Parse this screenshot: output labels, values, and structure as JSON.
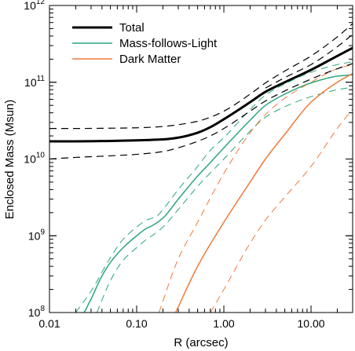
{
  "chart_data": {
    "type": "line",
    "title": "",
    "xlabel": "R (arcsec)",
    "ylabel": "Enclosed Mass (Msun)",
    "x_scale": "log",
    "y_scale": "log",
    "xlim": [
      0.01,
      30
    ],
    "ylim": [
      100000000.0,
      1000000000000.0
    ],
    "grid": false,
    "legend_position": "top-left",
    "x_ticks": [
      0.01,
      0.1,
      1,
      10
    ],
    "x_tick_labels": [
      "0.01",
      "0.10",
      "1.00",
      "10.00"
    ],
    "y_ticks": [
      100000000.0,
      1000000000.0,
      10000000000.0,
      100000000000.0,
      1000000000000.0
    ],
    "y_tick_labels": [
      {
        "base": "10",
        "exp": "8"
      },
      {
        "base": "10",
        "exp": "9"
      },
      {
        "base": "10",
        "exp": "10"
      },
      {
        "base": "10",
        "exp": "11"
      },
      {
        "base": "10",
        "exp": "12"
      }
    ],
    "series": [
      {
        "name": "Total",
        "color": "#000000",
        "style": "solid",
        "width": 3,
        "in_legend": true,
        "x": [
          0.01,
          0.02,
          0.05,
          0.1,
          0.2,
          0.3,
          0.5,
          0.7,
          1.0,
          2.0,
          3.0,
          5.0,
          10.0,
          20.0,
          30.0
        ],
        "y": [
          17000000000.0,
          17000000000.0,
          17200000000.0,
          17500000000.0,
          18000000000.0,
          19000000000.0,
          22000000000.0,
          26000000000.0,
          33000000000.0,
          55000000000.0,
          75000000000.0,
          100000000000.0,
          145000000000.0,
          220000000000.0,
          280000000000.0
        ]
      },
      {
        "name": "Mass-follows-Light",
        "color": "#2aa67a",
        "style": "solid",
        "width": 1.5,
        "in_legend": true,
        "x": [
          0.025,
          0.03,
          0.04,
          0.05,
          0.07,
          0.1,
          0.13,
          0.15,
          0.2,
          0.3,
          0.5,
          0.7,
          1.0,
          2.0,
          3.0,
          5.0,
          10.0,
          20.0,
          30.0
        ],
        "y": [
          100000000.0,
          150000000.0,
          300000000.0,
          450000000.0,
          700000000.0,
          1000000000.0,
          1250000000.0,
          1350000000.0,
          1700000000.0,
          3000000000.0,
          6000000000.0,
          9000000000.0,
          14000000000.0,
          32000000000.0,
          50000000000.0,
          70000000000.0,
          98000000000.0,
          120000000000.0,
          125000000000.0
        ]
      },
      {
        "name": "Mass-follows-Light upper",
        "color": "#2aa67a",
        "style": "dashed",
        "width": 1,
        "in_legend": false,
        "x": [
          0.02,
          0.03,
          0.05,
          0.07,
          0.1,
          0.13,
          0.17,
          0.2,
          0.3,
          0.5,
          0.7,
          1.0,
          2.0,
          3.0,
          5.0,
          10.0,
          20.0,
          30.0
        ],
        "y": [
          100000000.0,
          190000000.0,
          520000000.0,
          900000000.0,
          1300000000.0,
          1600000000.0,
          1800000000.0,
          2200000000.0,
          4000000000.0,
          8000000000.0,
          13000000000.0,
          19000000000.0,
          44000000000.0,
          68000000000.0,
          95000000000.0,
          135000000000.0,
          170000000000.0,
          185000000000.0
        ]
      },
      {
        "name": "Mass-follows-Light lower",
        "color": "#2aa67a",
        "style": "dashed",
        "width": 1,
        "in_legend": false,
        "x": [
          0.035,
          0.05,
          0.07,
          0.1,
          0.13,
          0.15,
          0.2,
          0.3,
          0.5,
          0.7,
          1.0,
          2.0,
          3.0,
          5.0,
          10.0,
          20.0,
          30.0
        ],
        "y": [
          100000000.0,
          260000000.0,
          480000000.0,
          700000000.0,
          900000000.0,
          1000000000.0,
          1300000000.0,
          2200000000.0,
          4400000000.0,
          6600000000.0,
          10000000000.0,
          23000000000.0,
          35000000000.0,
          48000000000.0,
          65000000000.0,
          80000000000.0,
          86000000000.0
        ]
      },
      {
        "name": "Dark Matter",
        "color": "#f07a3a",
        "style": "solid",
        "width": 1.5,
        "in_legend": true,
        "x": [
          0.28,
          0.5,
          1.0,
          2.0,
          3.0,
          5.0,
          10.0,
          20.0,
          30.0
        ],
        "y": [
          100000000.0,
          400000000.0,
          1500000000.0,
          5000000000.0,
          10000000000.0,
          21000000000.0,
          55000000000.0,
          100000000000.0,
          130000000000.0
        ]
      },
      {
        "name": "Dark Matter upper",
        "color": "#f07a3a",
        "style": "dashed",
        "width": 1,
        "in_legend": false,
        "x": [
          0.18,
          0.3,
          0.5,
          1.0,
          2.0,
          3.0,
          5.0,
          10.0,
          20.0,
          30.0
        ],
        "y": [
          100000000.0,
          500000000.0,
          1500000000.0,
          6500000000.0,
          22000000000.0,
          38000000000.0,
          62000000000.0,
          100000000000.0,
          150000000000.0,
          170000000000.0
        ]
      },
      {
        "name": "Dark Matter lower",
        "color": "#f07a3a",
        "style": "dashed",
        "width": 1,
        "in_legend": false,
        "x": [
          0.7,
          1.0,
          2.0,
          3.0,
          5.0,
          10.0,
          20.0,
          30.0
        ],
        "y": [
          100000000.0,
          200000000.0,
          800000000.0,
          1600000000.0,
          3200000000.0,
          8000000000.0,
          25000000000.0,
          45000000000.0
        ]
      },
      {
        "name": "Total upper",
        "color": "#000000",
        "style": "dashed",
        "width": 1.2,
        "in_legend": false,
        "x": [
          0.01,
          0.02,
          0.05,
          0.1,
          0.2,
          0.3,
          0.5,
          0.7,
          1.0,
          2.0,
          3.0,
          5.0,
          10.0,
          20.0,
          30.0
        ],
        "y": [
          25000000000.0,
          25000000000.0,
          25200000000.0,
          25500000000.0,
          26500000000.0,
          28000000000.0,
          31000000000.0,
          35000000000.0,
          42000000000.0,
          70000000000.0,
          98000000000.0,
          140000000000.0,
          220000000000.0,
          390000000000.0,
          580000000000.0
        ]
      },
      {
        "name": "Total lower",
        "color": "#000000",
        "style": "dashed",
        "width": 1.2,
        "in_legend": false,
        "x": [
          0.01,
          0.02,
          0.05,
          0.1,
          0.2,
          0.3,
          0.5,
          0.7,
          1.0,
          2.0,
          3.0,
          5.0,
          10.0,
          20.0,
          30.0
        ],
        "y": [
          10000000000.0,
          10500000000.0,
          11000000000.0,
          11500000000.0,
          12500000000.0,
          14000000000.0,
          17000000000.0,
          20000000000.0,
          25000000000.0,
          42000000000.0,
          57000000000.0,
          77000000000.0,
          110000000000.0,
          150000000000.0,
          175000000000.0
        ]
      },
      {
        "name": "Total mid",
        "color": "#000000",
        "style": "dashed",
        "width": 1.2,
        "in_legend": false,
        "x": [
          3.0,
          5.0,
          10.0,
          20.0,
          30.0
        ],
        "y": [
          84000000000.0,
          115000000000.0,
          170000000000.0,
          290000000000.0,
          420000000000.0
        ]
      }
    ]
  }
}
